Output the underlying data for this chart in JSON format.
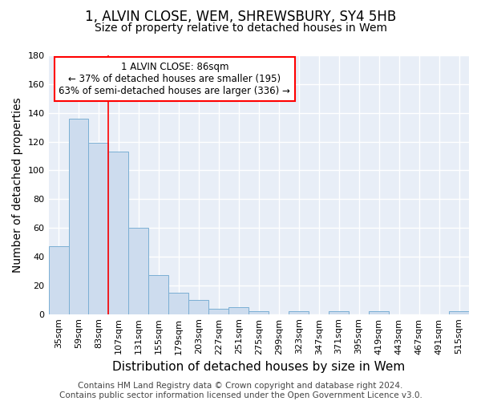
{
  "title": "1, ALVIN CLOSE, WEM, SHREWSBURY, SY4 5HB",
  "subtitle": "Size of property relative to detached houses in Wem",
  "xlabel": "Distribution of detached houses by size in Wem",
  "ylabel": "Number of detached properties",
  "bar_labels": [
    "35sqm",
    "59sqm",
    "83sqm",
    "107sqm",
    "131sqm",
    "155sqm",
    "179sqm",
    "203sqm",
    "227sqm",
    "251sqm",
    "275sqm",
    "299sqm",
    "323sqm",
    "347sqm",
    "371sqm",
    "395sqm",
    "419sqm",
    "443sqm",
    "467sqm",
    "491sqm",
    "515sqm"
  ],
  "bar_values": [
    47,
    136,
    119,
    113,
    60,
    27,
    15,
    10,
    4,
    5,
    2,
    0,
    2,
    0,
    2,
    0,
    2,
    0,
    0,
    0,
    2
  ],
  "bar_color": "#cddcee",
  "bar_edge_color": "#7bafd4",
  "ylim": [
    0,
    180
  ],
  "yticks": [
    0,
    20,
    40,
    60,
    80,
    100,
    120,
    140,
    160,
    180
  ],
  "red_line_x": 2.5,
  "annotation_text": "1 ALVIN CLOSE: 86sqm\n← 37% of detached houses are smaller (195)\n63% of semi-detached houses are larger (336) →",
  "footer": "Contains HM Land Registry data © Crown copyright and database right 2024.\nContains public sector information licensed under the Open Government Licence v3.0.",
  "fig_bg_color": "#ffffff",
  "plot_bg_color": "#e8eef7",
  "grid_color": "#ffffff",
  "title_fontsize": 12,
  "subtitle_fontsize": 10,
  "axis_label_fontsize": 10,
  "tick_fontsize": 8,
  "footer_fontsize": 7.5
}
